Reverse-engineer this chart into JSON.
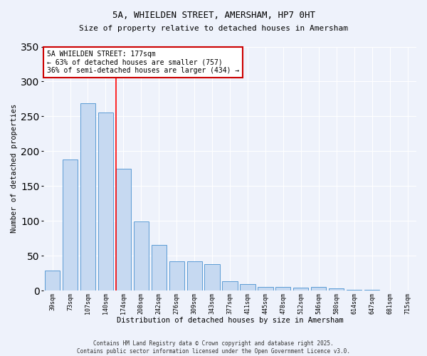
{
  "title": "5A, WHIELDEN STREET, AMERSHAM, HP7 0HT",
  "subtitle": "Size of property relative to detached houses in Amersham",
  "xlabel": "Distribution of detached houses by size in Amersham",
  "ylabel": "Number of detached properties",
  "bin_labels": [
    "39sqm",
    "73sqm",
    "107sqm",
    "140sqm",
    "174sqm",
    "208sqm",
    "242sqm",
    "276sqm",
    "309sqm",
    "343sqm",
    "377sqm",
    "411sqm",
    "445sqm",
    "478sqm",
    "512sqm",
    "546sqm",
    "580sqm",
    "614sqm",
    "647sqm",
    "681sqm",
    "715sqm"
  ],
  "bar_values": [
    29,
    188,
    269,
    255,
    175,
    99,
    65,
    42,
    42,
    38,
    13,
    9,
    5,
    5,
    4,
    5,
    3,
    1,
    1,
    0,
    0
  ],
  "bar_color": "#c6d9f1",
  "bar_edge_color": "#5b9bd5",
  "vline_x_index": 4,
  "vline_color": "#ff0000",
  "ylim": [
    0,
    350
  ],
  "yticks": [
    0,
    50,
    100,
    150,
    200,
    250,
    300,
    350
  ],
  "annotation_title": "5A WHIELDEN STREET: 177sqm",
  "annotation_line1": "← 63% of detached houses are smaller (757)",
  "annotation_line2": "36% of semi-detached houses are larger (434) →",
  "annotation_box_color": "#ffffff",
  "annotation_box_edge": "#cc0000",
  "footer1": "Contains HM Land Registry data © Crown copyright and database right 2025.",
  "footer2": "Contains public sector information licensed under the Open Government Licence v3.0.",
  "background_color": "#eef2fb",
  "grid_color": "#ffffff",
  "title_fontsize": 9,
  "subtitle_fontsize": 8,
  "axis_label_fontsize": 7.5,
  "tick_label_fontsize": 6,
  "annotation_fontsize": 7,
  "footer_fontsize": 5.5
}
